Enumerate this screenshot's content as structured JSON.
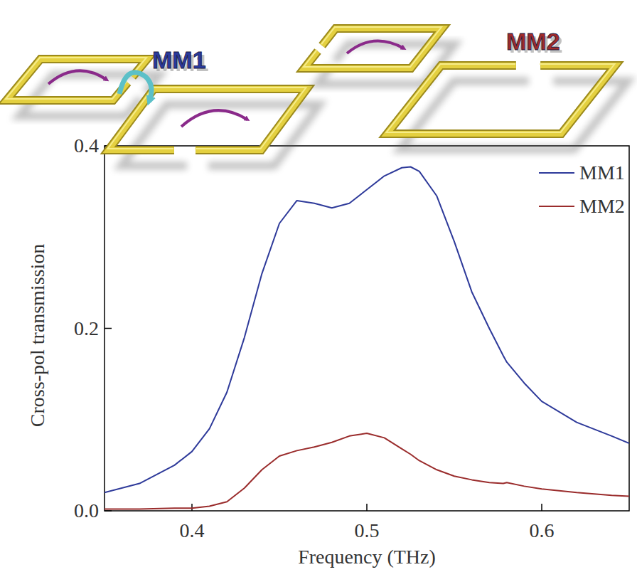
{
  "chart_data": {
    "type": "line",
    "x_label": "Frequency (THz)",
    "y_label": "Cross-pol transmission",
    "x": [
      0.35,
      0.37,
      0.39,
      0.4,
      0.41,
      0.42,
      0.43,
      0.44,
      0.45,
      0.46,
      0.47,
      0.48,
      0.49,
      0.5,
      0.51,
      0.52,
      0.525,
      0.53,
      0.54,
      0.55,
      0.56,
      0.57,
      0.578,
      0.58,
      0.59,
      0.6,
      0.62,
      0.64,
      0.65
    ],
    "series": [
      {
        "name": "MM1",
        "color": "#2e3a9a",
        "values": [
          0.02,
          0.03,
          0.05,
          0.065,
          0.09,
          0.13,
          0.19,
          0.26,
          0.315,
          0.34,
          0.337,
          0.332,
          0.337,
          0.352,
          0.367,
          0.376,
          0.377,
          0.372,
          0.345,
          0.295,
          0.24,
          0.2,
          0.17,
          0.163,
          0.14,
          0.12,
          0.097,
          0.082,
          0.074
        ]
      },
      {
        "name": "MM2",
        "color": "#9a2c2c",
        "values": [
          0.002,
          0.002,
          0.003,
          0.003,
          0.005,
          0.01,
          0.025,
          0.045,
          0.06,
          0.066,
          0.07,
          0.075,
          0.082,
          0.085,
          0.08,
          0.068,
          0.062,
          0.055,
          0.045,
          0.038,
          0.034,
          0.031,
          0.03,
          0.031,
          0.027,
          0.024,
          0.02,
          0.017,
          0.016
        ]
      }
    ],
    "xlim": [
      0.35,
      0.65
    ],
    "ylim": [
      0,
      0.4
    ],
    "xticks": [
      0.4,
      0.5,
      0.6
    ],
    "yticks": [
      {
        "value": 0,
        "label": "0.0"
      },
      0.2,
      0.4
    ],
    "legend": "upper right",
    "annotations": [
      {
        "text": "MM1",
        "color": "#2a3a9c"
      },
      {
        "text": "MM2",
        "color": "#a02a2a"
      }
    ]
  }
}
